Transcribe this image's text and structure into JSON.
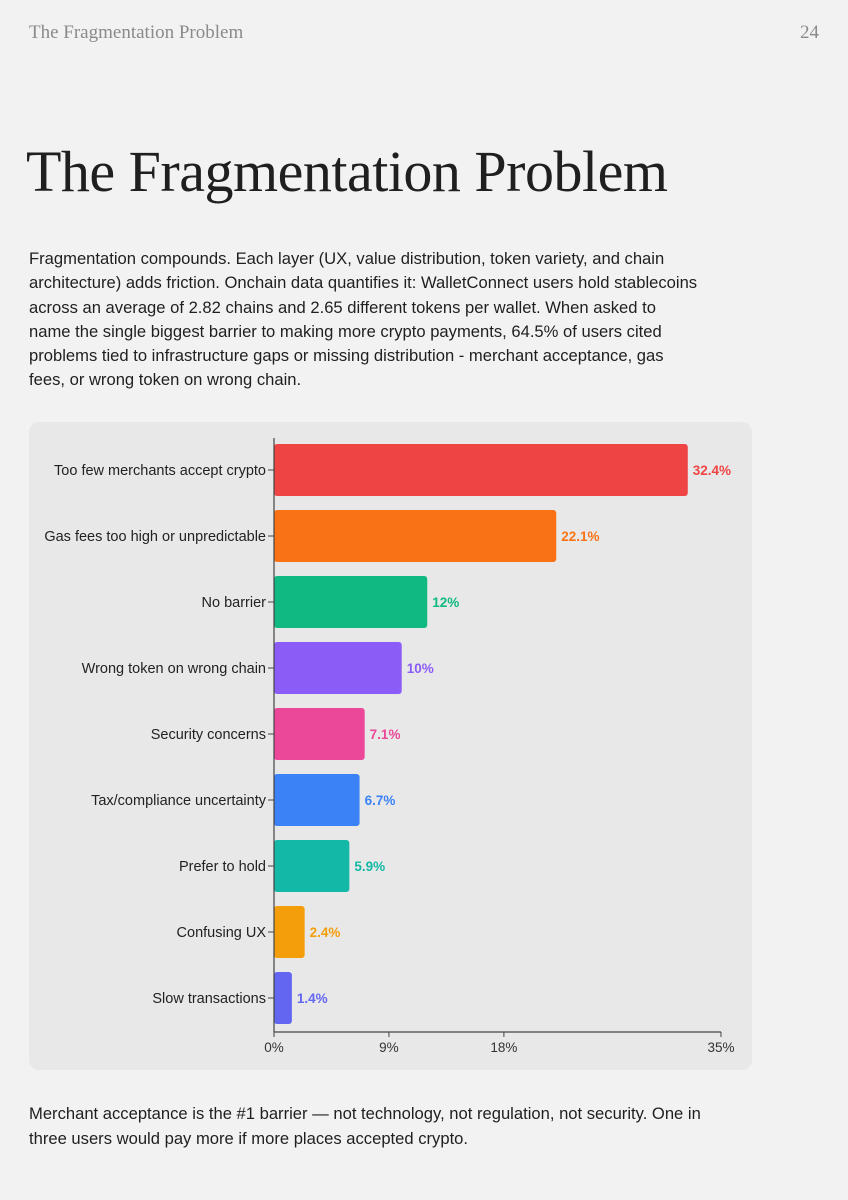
{
  "header": {
    "running_title": "The Fragmentation Problem",
    "page_number": "24"
  },
  "title": "The Fragmentation Problem",
  "intro": "Fragmentation compounds. Each layer (UX, value distribution, token variety, and chain architecture) adds friction. Onchain data quantifies it: WalletConnect users hold stablecoins across an average of 2.82 chains and 2.65 different tokens per wallet. When asked to name the single biggest barrier to making more crypto payments, 64.5% of users cited problems tied to infrastructure gaps or missing distribution -  merchant acceptance, gas fees, or wrong token on wrong chain.",
  "chart_data": {
    "type": "bar",
    "orientation": "horizontal",
    "categories": [
      "Too few merchants accept crypto",
      "Gas fees too high or unpredictable",
      "No barrier",
      "Wrong token on wrong chain",
      "Security concerns",
      "Tax/compliance uncertainty",
      "Prefer to hold",
      "Confusing UX",
      "Slow transactions"
    ],
    "values": [
      32.4,
      22.1,
      12,
      10,
      7.1,
      6.7,
      5.9,
      2.4,
      1.4
    ],
    "value_labels": [
      "32.4%",
      "22.1%",
      "12%",
      "10%",
      "7.1%",
      "6.7%",
      "5.9%",
      "2.4%",
      "1.4%"
    ],
    "colors": [
      "#ef4444",
      "#f97316",
      "#10b981",
      "#8b5cf6",
      "#ec4899",
      "#3b82f6",
      "#14b8a6",
      "#f59e0b",
      "#6366f1"
    ],
    "xlim": [
      0,
      35
    ],
    "xticks": [
      0,
      9,
      18,
      35
    ],
    "xtick_labels": [
      "0%",
      "9%",
      "18%",
      "35%"
    ],
    "grid": false,
    "legend": "none"
  },
  "outro": "Merchant acceptance is the #1 barrier — not technology, not regulation, not security. One in three users would pay more if more places accepted crypto."
}
